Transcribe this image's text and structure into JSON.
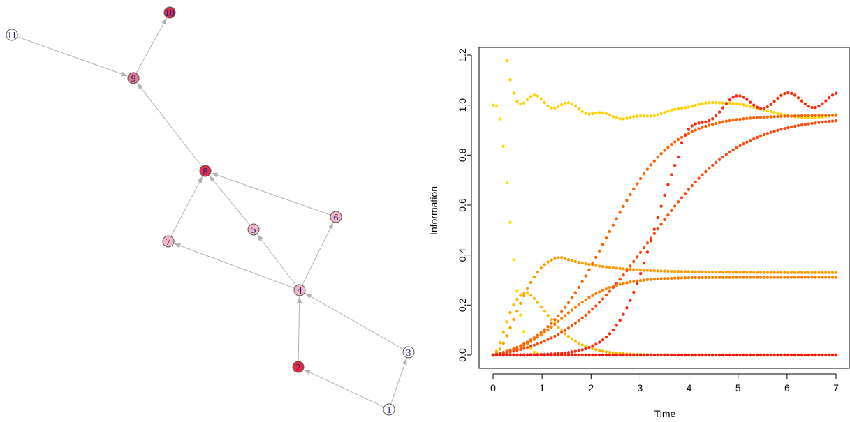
{
  "chart_data": [
    {
      "type": "network",
      "nodes": [
        {
          "id": "1",
          "label": "1",
          "color": "#ffffff"
        },
        {
          "id": "2",
          "label": "2",
          "color": "#e8283c"
        },
        {
          "id": "3",
          "label": "3",
          "color": "#ffffff"
        },
        {
          "id": "4",
          "label": "4",
          "color": "#f4b8c4"
        },
        {
          "id": "5",
          "label": "5",
          "color": "#f4b8c4"
        },
        {
          "id": "6",
          "label": "6",
          "color": "#f4b8c4"
        },
        {
          "id": "7",
          "label": "7",
          "color": "#f4b8c4"
        },
        {
          "id": "8",
          "label": "8",
          "color": "#e0304a"
        },
        {
          "id": "9",
          "label": "9",
          "color": "#e8788e"
        },
        {
          "id": "10",
          "label": "10",
          "color": "#d8304a"
        },
        {
          "id": "11",
          "label": "11",
          "color": "#ffffff"
        }
      ],
      "edges": [
        [
          "1",
          "2"
        ],
        [
          "1",
          "3"
        ],
        [
          "2",
          "4"
        ],
        [
          "3",
          "4"
        ],
        [
          "4",
          "5"
        ],
        [
          "4",
          "6"
        ],
        [
          "4",
          "7"
        ],
        [
          "5",
          "8"
        ],
        [
          "6",
          "8"
        ],
        [
          "7",
          "8"
        ],
        [
          "8",
          "9"
        ],
        [
          "11",
          "9"
        ],
        [
          "9",
          "10"
        ]
      ],
      "label_color": "#1a1a8c",
      "edge_color": "#b0b0b0"
    },
    {
      "type": "scatter",
      "xlabel": "Time",
      "ylabel": "Information",
      "xlim": [
        0,
        7
      ],
      "ylim": [
        0,
        1.2
      ],
      "x_ticks": [
        "0",
        "1",
        "2",
        "3",
        "4",
        "5",
        "6",
        "7"
      ],
      "y_ticks": [
        "0.0",
        "0.2",
        "0.4",
        "0.6",
        "0.8",
        "1.0",
        "1.2"
      ],
      "grid": false,
      "legend": "none",
      "t_step": 0.07,
      "series": [
        {
          "color": "#ffe000",
          "curve": "decay",
          "peak_y": 1.0,
          "drop_rate": 3.2,
          "tail_y": 0.0
        },
        {
          "color": "#ffd000",
          "curve": "spike-hover",
          "spike_x": 0.28,
          "spike_y": 1.16,
          "tail_y": 1.0
        },
        {
          "color": "#ffb800",
          "curve": "hump",
          "peak_x": 0.7,
          "peak_y": 0.25,
          "decay_rate": 0.85,
          "tail_y": 0.0
        },
        {
          "color": "#ff9a00",
          "curve": "hump-plateau",
          "peak_x": 1.4,
          "peak_y": 0.39,
          "tail_y": 0.33
        },
        {
          "color": "#ff7e00",
          "curve": "rise-plateau",
          "mid_x": 1.4,
          "rate": 2.0,
          "tail_y": 0.33
        },
        {
          "color": "#ff6200",
          "curve": "sigmoid",
          "mid_x": 2.3,
          "rate": 1.5,
          "tail_y": 0.99
        },
        {
          "color": "#ff4a10",
          "curve": "sigmoid",
          "mid_x": 3.2,
          "rate": 1.1,
          "tail_y": 0.98
        },
        {
          "color": "#ff2a10",
          "curve": "sigmoid-overshoot",
          "mid_x": 3.3,
          "rate": 2.6,
          "tail_y": 1.02
        },
        {
          "color": "#ff1010",
          "curve": "flat",
          "tail_y": 0.0
        }
      ]
    }
  ]
}
